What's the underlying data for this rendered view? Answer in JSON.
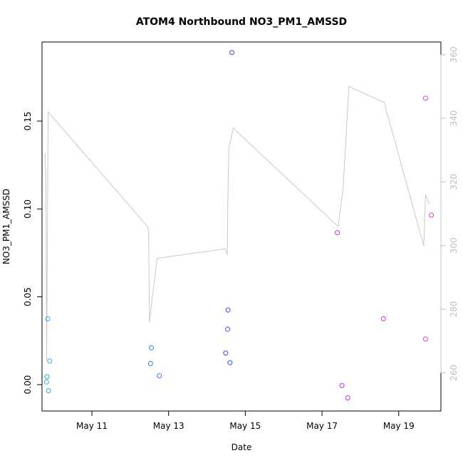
{
  "chart_data": {
    "type": "scatter",
    "title": "ATOM4 Northbound NO3_PM1_AMSSD",
    "xlabel": "Date",
    "ylabel": "NO3_PM1_AMSSD",
    "xlim": [
      9.7,
      20.1
    ],
    "ylim": [
      -0.015,
      0.195
    ],
    "y2lim": [
      248,
      364
    ],
    "x_ticks": [
      {
        "value": 11,
        "label": "May 11"
      },
      {
        "value": 13,
        "label": "May 13"
      },
      {
        "value": 15,
        "label": "May 15"
      },
      {
        "value": 17,
        "label": "May 17"
      },
      {
        "value": 19,
        "label": "May 19"
      }
    ],
    "y_ticks": [
      {
        "value": 0.0,
        "label": "0.00"
      },
      {
        "value": 0.05,
        "label": "0.05"
      },
      {
        "value": 0.1,
        "label": "0.10"
      },
      {
        "value": 0.15,
        "label": "0.15"
      }
    ],
    "y2_ticks": [
      {
        "value": 260,
        "label": "260"
      },
      {
        "value": 280,
        "label": "280"
      },
      {
        "value": 300,
        "label": "300"
      },
      {
        "value": 320,
        "label": "320"
      },
      {
        "value": 340,
        "label": "340"
      },
      {
        "value": 360,
        "label": "360"
      }
    ],
    "points": [
      {
        "x": 9.85,
        "y": 0.0375,
        "color": "#29aee0"
      },
      {
        "x": 9.9,
        "y": 0.0135,
        "color": "#29aee0"
      },
      {
        "x": 9.83,
        "y": 0.0045,
        "color": "#29aee0"
      },
      {
        "x": 9.82,
        "y": 0.0015,
        "color": "#29aee0"
      },
      {
        "x": 9.87,
        "y": -0.0035,
        "color": "#29aee0"
      },
      {
        "x": 12.55,
        "y": 0.021,
        "color": "#2f7fe3"
      },
      {
        "x": 12.53,
        "y": 0.012,
        "color": "#2f7fe3"
      },
      {
        "x": 12.76,
        "y": 0.005,
        "color": "#2f7fe3"
      },
      {
        "x": 14.55,
        "y": 0.0425,
        "color": "#3b50e6"
      },
      {
        "x": 14.54,
        "y": 0.0315,
        "color": "#3b50e6"
      },
      {
        "x": 14.49,
        "y": 0.018,
        "color": "#3b50e6"
      },
      {
        "x": 14.6,
        "y": 0.0125,
        "color": "#3b50e6"
      },
      {
        "x": 14.65,
        "y": 0.189,
        "color": "#4438e0"
      },
      {
        "x": 17.4,
        "y": 0.0865,
        "color": "#b33ad8"
      },
      {
        "x": 17.52,
        "y": -0.0005,
        "color": "#b33ad8"
      },
      {
        "x": 17.67,
        "y": -0.0075,
        "color": "#b33ad8"
      },
      {
        "x": 18.6,
        "y": 0.0375,
        "color": "#cc3ad6"
      },
      {
        "x": 19.7,
        "y": 0.163,
        "color": "#e03bd5"
      },
      {
        "x": 19.7,
        "y": 0.026,
        "color": "#e03bd5"
      },
      {
        "x": 19.85,
        "y": 0.0965,
        "color": "#e03bd5"
      }
    ],
    "line": {
      "axis": "right",
      "color": "#c8c8c8",
      "x": [
        9.78,
        9.8,
        9.82,
        9.86,
        12.45,
        12.48,
        12.5,
        12.7,
        14.48,
        14.53,
        14.54,
        14.57,
        14.62,
        14.68,
        17.42,
        17.55,
        17.7,
        18.62,
        19.65,
        19.7,
        19.8
      ],
      "y": [
        329,
        320,
        264,
        342,
        306,
        304,
        276,
        296,
        299,
        297,
        310,
        331,
        333,
        337,
        306,
        318,
        350,
        345,
        300,
        316,
        313
      ]
    },
    "grid": false,
    "legend": "none"
  }
}
